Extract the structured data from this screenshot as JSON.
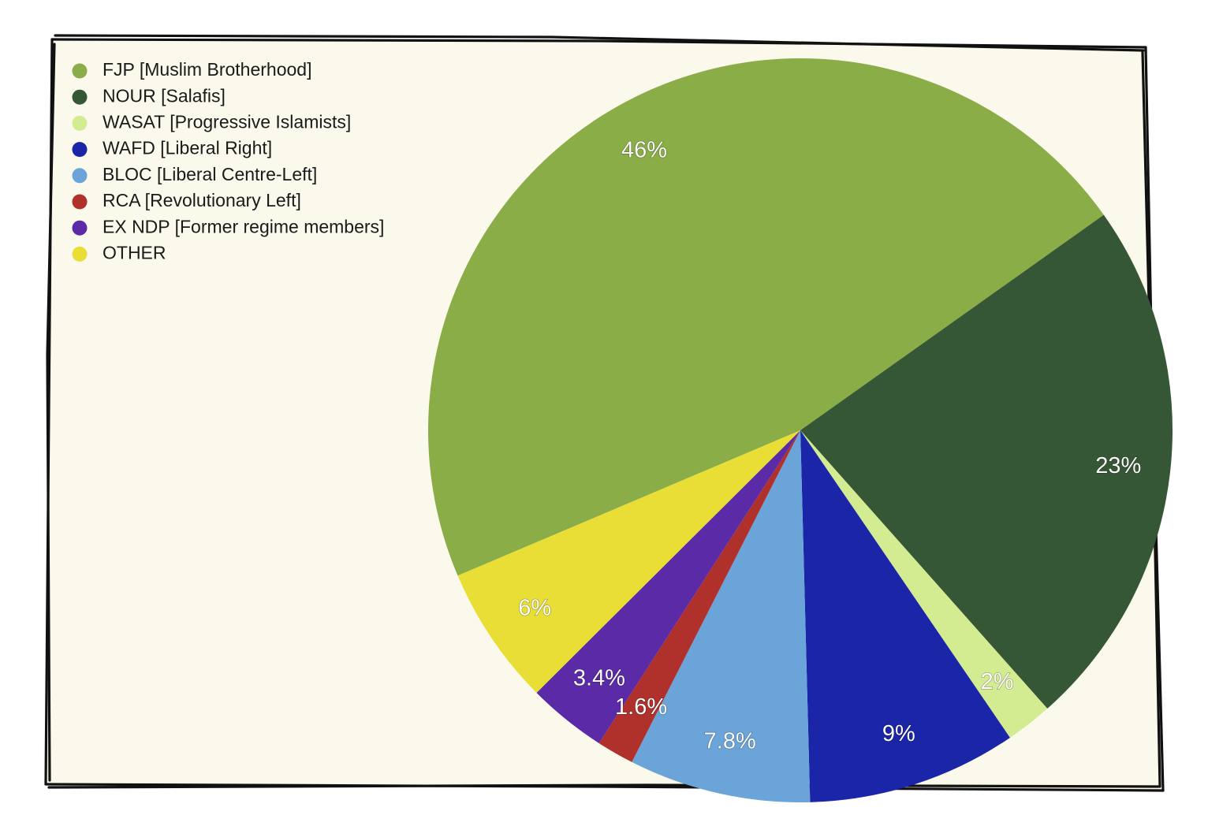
{
  "chart_data": {
    "type": "pie",
    "title": "",
    "legend_position": "top-left",
    "start_angle_deg": 247,
    "direction": "clockwise",
    "slices": [
      {
        "name": "FJP [Muslim Brotherhood]",
        "value": 46,
        "label": "46%",
        "color": "#8aad47"
      },
      {
        "name": "NOUR [Salafis]",
        "value": 23,
        "label": "23%",
        "color": "#365735"
      },
      {
        "name": "WASAT [Progressive Islamists]",
        "value": 2,
        "label": "2%",
        "color": "#d3eb91"
      },
      {
        "name": "WAFD [Liberal Right]",
        "value": 9,
        "label": "9%",
        "color": "#1b25a8"
      },
      {
        "name": "BLOC [Liberal Centre-Left]",
        "value": 7.8,
        "label": "7.8%",
        "color": "#6aa4d9"
      },
      {
        "name": "RCA [Revolutionary Left]",
        "value": 1.6,
        "label": "1.6%",
        "color": "#b0312c"
      },
      {
        "name": "EX NDP [Former regime members]",
        "value": 3.4,
        "label": "3.4%",
        "color": "#5b2aa6"
      },
      {
        "name": "OTHER",
        "value": 6,
        "label": "6%",
        "color": "#e8de36"
      }
    ]
  }
}
